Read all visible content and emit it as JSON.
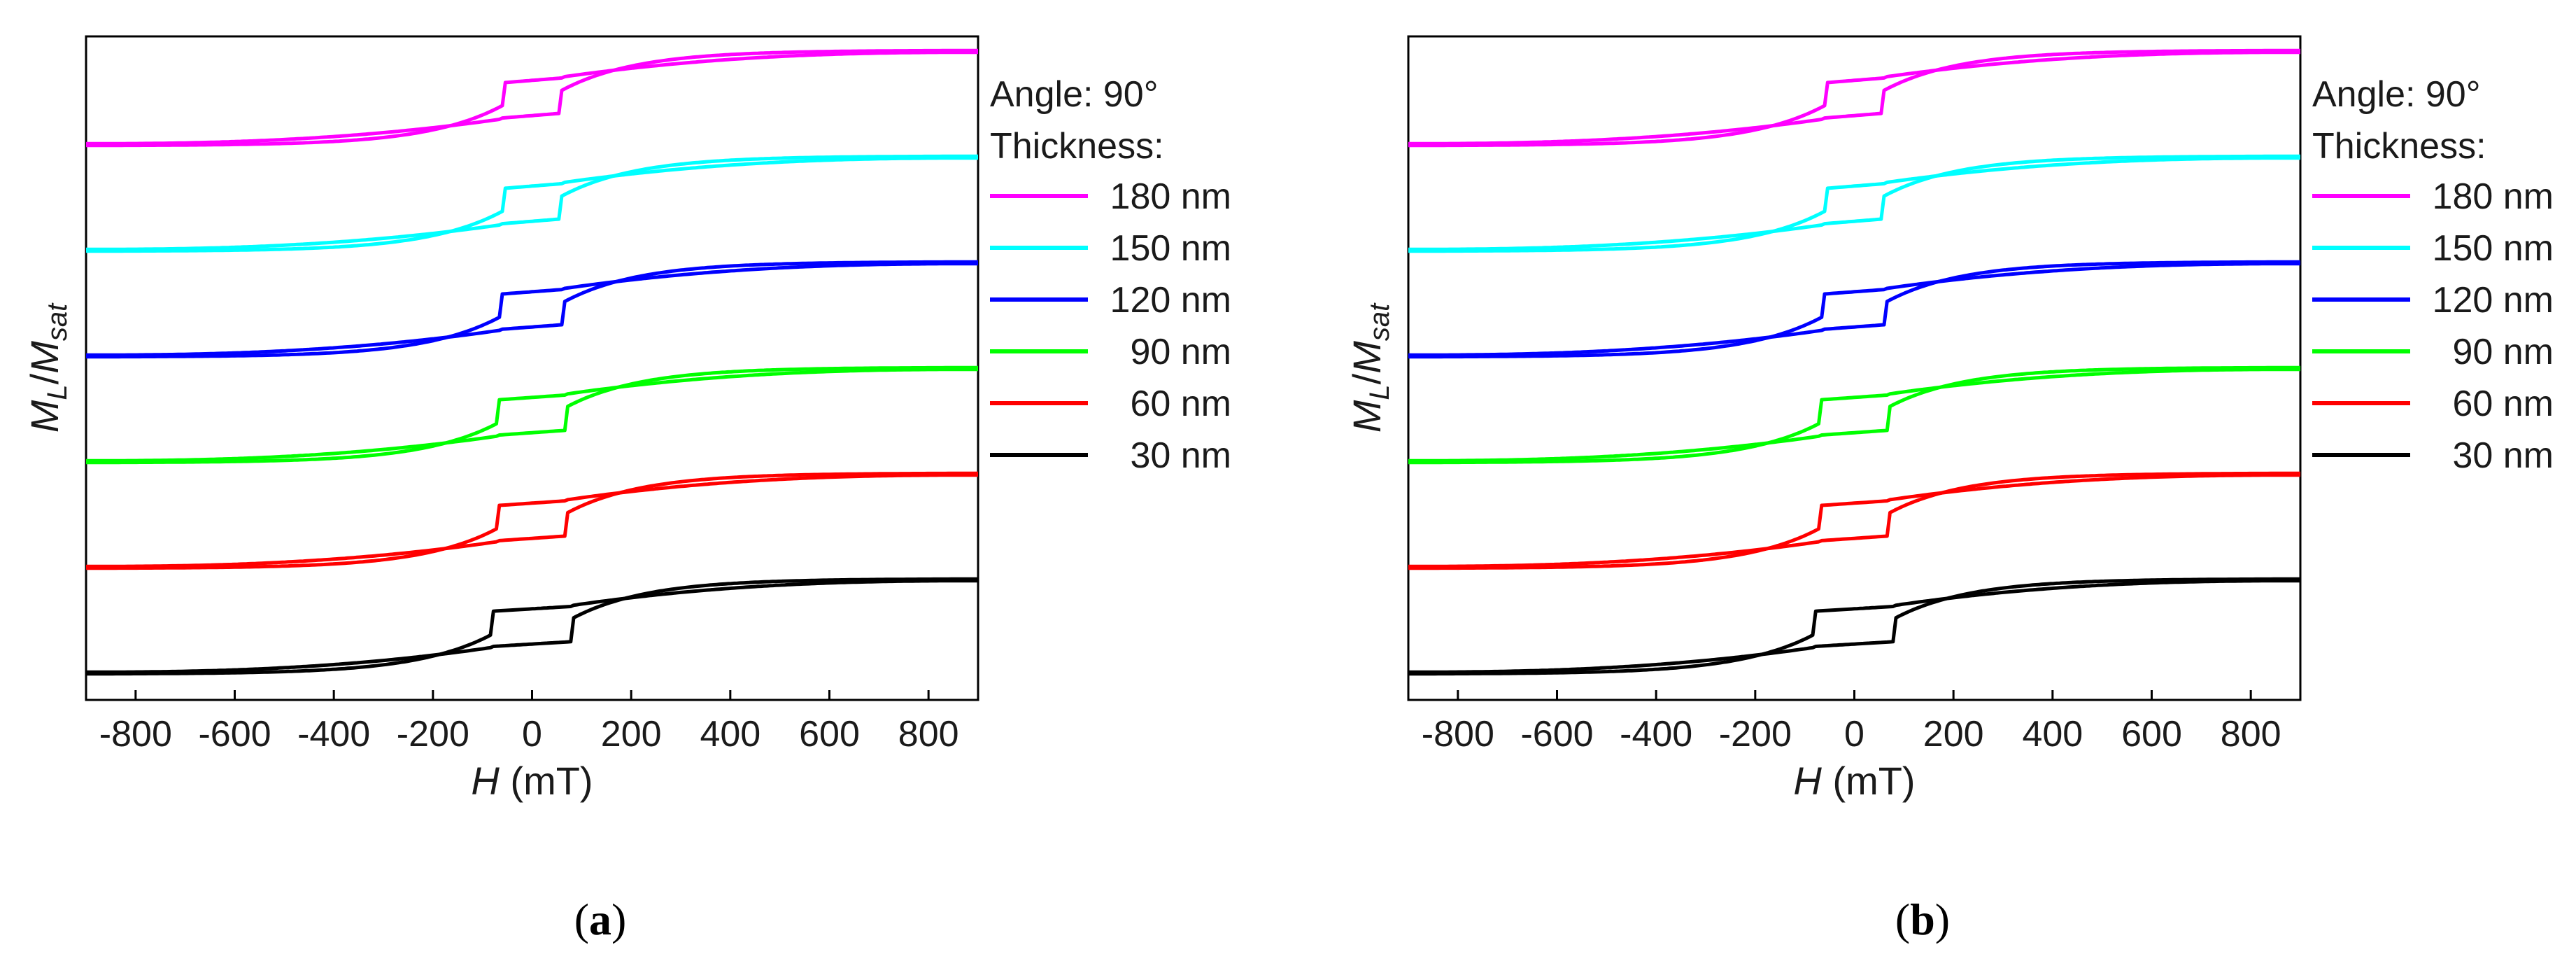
{
  "chart_data": [
    {
      "type": "line",
      "panel": "a",
      "caption": {
        "open": "(",
        "letter": "a",
        "close": ")"
      },
      "xlabel": {
        "italic": "H",
        "rest": " (mT)"
      },
      "ylabel": {
        "M": "M",
        "L": "L",
        "slash": "/",
        "M2": "M",
        "sat": "sat"
      },
      "xlim": [
        -900,
        900
      ],
      "xticks": [
        -800,
        -600,
        -400,
        -200,
        0,
        200,
        400,
        600,
        800
      ],
      "xtick_labels": [
        "-800",
        "-600",
        "-400",
        "-200",
        "0",
        "200",
        "400",
        "600",
        "800"
      ],
      "yticks_shown": false,
      "legend": {
        "heading_1": "Angle: 90°",
        "heading_2": "Thickness:",
        "placement": "right"
      },
      "series": [
        {
          "name": "180 nm",
          "color": "#ff00ff",
          "coercive_field": 60,
          "offset": 5
        },
        {
          "name": "150 nm",
          "color": "#00ffff",
          "coercive_field": 60,
          "offset": 4
        },
        {
          "name": "120 nm",
          "color": "#0000ff",
          "coercive_field": 65,
          "offset": 3
        },
        {
          "name": "90 nm",
          "color": "#00ff00",
          "coercive_field": 68,
          "offset": 2
        },
        {
          "name": "60 nm",
          "color": "#ff0000",
          "coercive_field": 70,
          "offset": 1
        },
        {
          "name": "30 nm",
          "color": "#000000",
          "coercive_field": 80,
          "offset": 0
        }
      ]
    },
    {
      "type": "line",
      "panel": "b",
      "caption": {
        "open": "(",
        "letter": "b",
        "close": ")"
      },
      "xlabel": {
        "italic": "H",
        "rest": " (mT)"
      },
      "ylabel": {
        "M": "M",
        "L": "L",
        "slash": "/",
        "M2": "M",
        "sat": "sat"
      },
      "xlim": [
        -900,
        900
      ],
      "xticks": [
        -800,
        -600,
        -400,
        -200,
        0,
        200,
        400,
        600,
        800
      ],
      "xtick_labels": [
        "-800",
        "-600",
        "-400",
        "-200",
        "0",
        "200",
        "400",
        "600",
        "800"
      ],
      "yticks_shown": false,
      "legend": {
        "heading_1": "Angle: 90°",
        "heading_2": "Thickness:",
        "placement": "right"
      },
      "series": [
        {
          "name": "180 nm",
          "color": "#ff00ff",
          "coercive_field": 60,
          "offset": 5
        },
        {
          "name": "150 nm",
          "color": "#00ffff",
          "coercive_field": 60,
          "offset": 4
        },
        {
          "name": "120 nm",
          "color": "#0000ff",
          "coercive_field": 65,
          "offset": 3
        },
        {
          "name": "90 nm",
          "color": "#00ff00",
          "coercive_field": 68,
          "offset": 2
        },
        {
          "name": "60 nm",
          "color": "#ff0000",
          "coercive_field": 70,
          "offset": 1
        },
        {
          "name": "30 nm",
          "color": "#000000",
          "coercive_field": 80,
          "offset": 0
        }
      ]
    }
  ]
}
